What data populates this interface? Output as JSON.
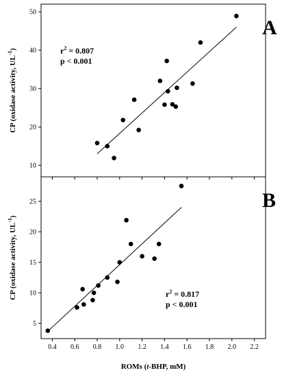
{
  "chart_data": [
    {
      "type": "scatter",
      "panel": "A",
      "ylabel_main": "CP (oxidase activity, UL",
      "ylabel_sup": "-1",
      "ylabel_end": ")",
      "xlim": [
        0.3,
        2.3
      ],
      "ylim": [
        7,
        52
      ],
      "yticks": [
        10,
        20,
        30,
        40,
        50
      ],
      "xticks": [
        0.4,
        0.6,
        0.8,
        1.0,
        1.2,
        1.4,
        1.6,
        1.8,
        2.0,
        2.2
      ],
      "annotation": {
        "r2_prefix": "r",
        "r2_sup": "2",
        "r2_value": " = 0.807",
        "p": "p < 0.001"
      },
      "points": [
        {
          "x": 0.8,
          "y": 15.8
        },
        {
          "x": 0.89,
          "y": 15.0
        },
        {
          "x": 0.95,
          "y": 11.9
        },
        {
          "x": 1.03,
          "y": 21.8
        },
        {
          "x": 1.13,
          "y": 27.1
        },
        {
          "x": 1.17,
          "y": 19.2
        },
        {
          "x": 1.36,
          "y": 32.0
        },
        {
          "x": 1.4,
          "y": 25.8
        },
        {
          "x": 1.42,
          "y": 37.2
        },
        {
          "x": 1.43,
          "y": 29.3
        },
        {
          "x": 1.47,
          "y": 25.9
        },
        {
          "x": 1.5,
          "y": 25.3
        },
        {
          "x": 1.51,
          "y": 30.2
        },
        {
          "x": 1.65,
          "y": 31.3
        },
        {
          "x": 1.72,
          "y": 42.0
        },
        {
          "x": 2.04,
          "y": 48.9
        }
      ],
      "fit": {
        "x1": 0.8,
        "y1": 13.0,
        "x2": 2.04,
        "y2": 46.0
      }
    },
    {
      "type": "scatter",
      "panel": "B",
      "xlabel_pre": "ROMs (",
      "xlabel_italic": "t",
      "xlabel_post": "-BHP, mM)",
      "ylabel_main": "CP (oxidase activity, UL",
      "ylabel_sup": "-1",
      "ylabel_end": ")",
      "xlim": [
        0.3,
        2.3
      ],
      "ylim": [
        2.5,
        29
      ],
      "yticks": [
        5,
        10,
        15,
        20,
        25
      ],
      "xticks": [
        0.4,
        0.6,
        0.8,
        1.0,
        1.2,
        1.4,
        1.6,
        1.8,
        2.0,
        2.2
      ],
      "xtick_labels": [
        "0.4",
        "0.6",
        "0.8",
        "1.0",
        "1.2",
        "1.4",
        "1.6",
        "1.8",
        "2.0",
        "2.2"
      ],
      "annotation": {
        "r2_prefix": "r",
        "r2_sup": "2",
        "r2_value": " = 0.817",
        "p": "p < 0.001"
      },
      "points": [
        {
          "x": 0.36,
          "y": 3.8
        },
        {
          "x": 0.62,
          "y": 7.6
        },
        {
          "x": 0.67,
          "y": 10.6
        },
        {
          "x": 0.68,
          "y": 8.1
        },
        {
          "x": 0.76,
          "y": 8.8
        },
        {
          "x": 0.77,
          "y": 10.0
        },
        {
          "x": 0.81,
          "y": 11.2
        },
        {
          "x": 0.89,
          "y": 12.5
        },
        {
          "x": 0.98,
          "y": 11.8
        },
        {
          "x": 1.0,
          "y": 15.0
        },
        {
          "x": 1.06,
          "y": 21.9
        },
        {
          "x": 1.1,
          "y": 18.0
        },
        {
          "x": 1.2,
          "y": 16.0
        },
        {
          "x": 1.31,
          "y": 15.6
        },
        {
          "x": 1.35,
          "y": 18.0
        },
        {
          "x": 1.55,
          "y": 27.5
        }
      ],
      "fit": {
        "x1": 0.36,
        "y1": 3.7,
        "x2": 1.55,
        "y2": 24.0
      }
    }
  ]
}
